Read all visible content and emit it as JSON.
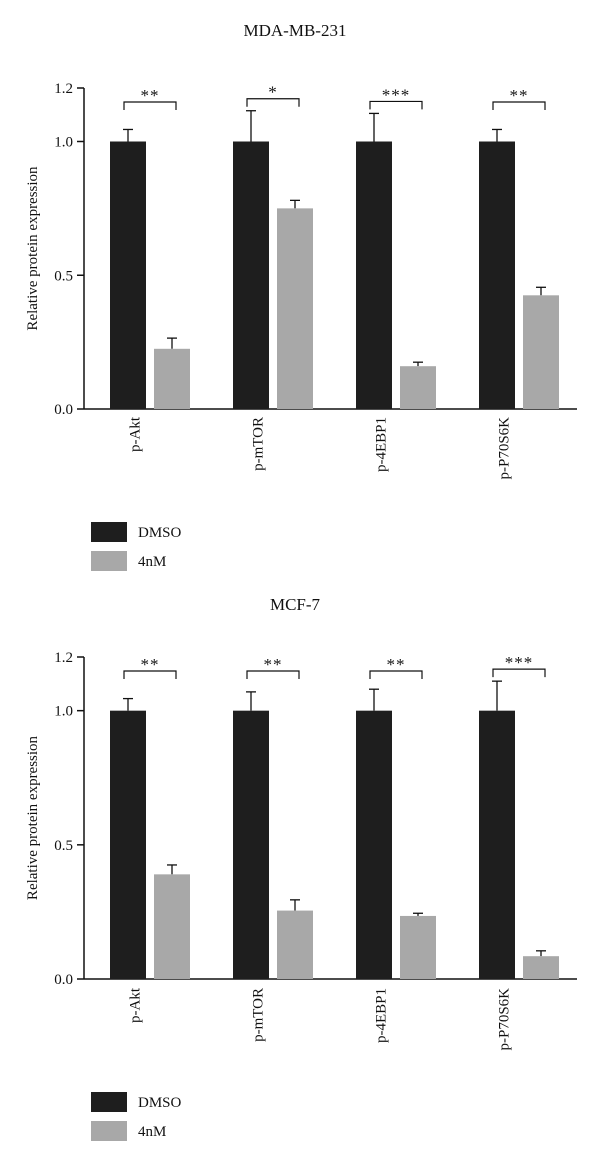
{
  "chart_data": [
    {
      "type": "bar",
      "title": "MDA-MB-231",
      "ylabel": "Relative protein expression",
      "xlabel": "",
      "ylim": [
        0,
        1.2
      ],
      "yticks": [
        "0.0",
        "0.5",
        "1.0",
        "1.2"
      ],
      "categories": [
        "p-Akt",
        "p-mTOR",
        "p-4EBP1",
        "p-P70S6K"
      ],
      "series": [
        {
          "name": "DMSO",
          "color": "#1e1e1e",
          "values": [
            1.0,
            1.0,
            1.0,
            1.0
          ],
          "errors": [
            0.045,
            0.115,
            0.105,
            0.045
          ]
        },
        {
          "name": "4nM",
          "color": "#a8a8a8",
          "values": [
            0.225,
            0.75,
            0.16,
            0.425
          ],
          "errors": [
            0.04,
            0.03,
            0.015,
            0.03
          ]
        }
      ],
      "significance": [
        "**",
        "*",
        "***",
        "**"
      ],
      "legend_position": "bottom-left"
    },
    {
      "type": "bar",
      "title": "MCF-7",
      "ylabel": "Relative protein expression",
      "xlabel": "",
      "ylim": [
        0,
        1.2
      ],
      "yticks": [
        "0.0",
        "0.5",
        "1.0",
        "1.2"
      ],
      "categories": [
        "p-Akt",
        "p-mTOR",
        "p-4EBP1",
        "p-P70S6K"
      ],
      "series": [
        {
          "name": "DMSO",
          "color": "#1e1e1e",
          "values": [
            1.0,
            1.0,
            1.0,
            1.0
          ],
          "errors": [
            0.045,
            0.07,
            0.08,
            0.11
          ]
        },
        {
          "name": "4nM",
          "color": "#a8a8a8",
          "values": [
            0.39,
            0.255,
            0.235,
            0.085
          ],
          "errors": [
            0.035,
            0.04,
            0.01,
            0.02
          ]
        }
      ],
      "significance": [
        "**",
        "**",
        "**",
        "***"
      ],
      "legend_position": "bottom-left"
    }
  ]
}
